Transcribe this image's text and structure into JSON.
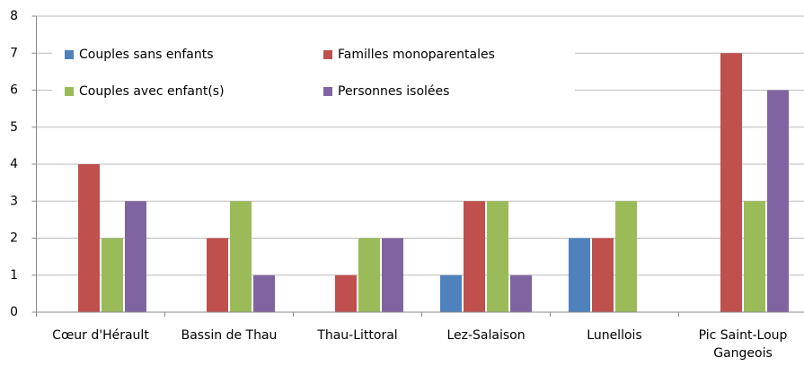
{
  "chart_data": {
    "type": "bar",
    "categories": [
      "Cœur d'Hérault",
      "Bassin de Thau",
      "Thau-Littoral",
      "Lez-Salaison",
      "Lunellois",
      "Pic Saint-Loup Gangeois"
    ],
    "series": [
      {
        "name": "Couples sans enfants",
        "color": "#4f81bd",
        "values": [
          0,
          0,
          0,
          1,
          2,
          0
        ]
      },
      {
        "name": "Familles monoparentales",
        "color": "#c0504d",
        "values": [
          4,
          2,
          1,
          3,
          2,
          7
        ]
      },
      {
        "name": "Couples avec enfant(s)",
        "color": "#9bbb59",
        "values": [
          2,
          3,
          2,
          3,
          3,
          3
        ]
      },
      {
        "name": "Personnes isolées",
        "color": "#8064a2",
        "values": [
          3,
          1,
          2,
          1,
          0,
          6
        ]
      }
    ],
    "ylim": [
      0,
      8
    ],
    "yticks": [
      0,
      1,
      2,
      3,
      4,
      5,
      6,
      7,
      8
    ],
    "grid": true,
    "legend": "top"
  }
}
